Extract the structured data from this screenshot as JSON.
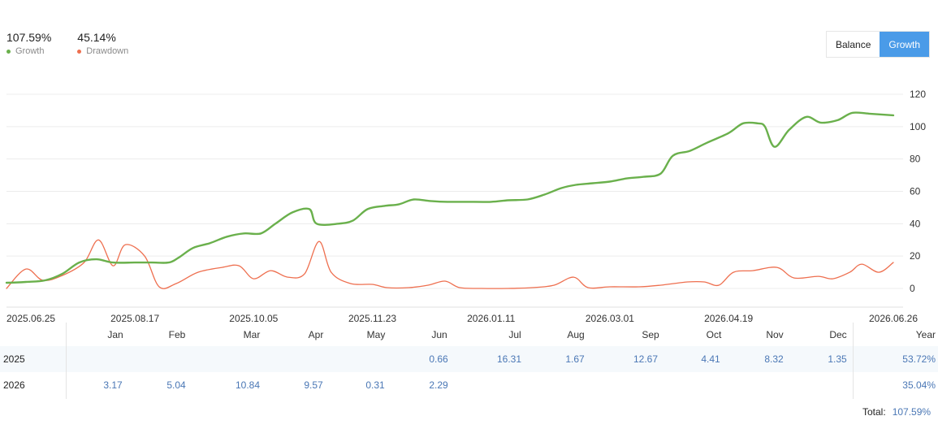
{
  "stats": {
    "growth_value": "107.59%",
    "growth_label": "Growth",
    "drawdown_value": "45.14%",
    "drawdown_label": "Drawdown"
  },
  "toggle": {
    "balance_label": "Balance",
    "growth_label": "Growth",
    "active": "Growth"
  },
  "colors": {
    "growth": "#6ab04c",
    "drawdown": "#ee6f4f",
    "accent": "#4a9be8",
    "value_text": "#4a77b5"
  },
  "chart_data": {
    "type": "line",
    "xlabel": "",
    "ylabel": "",
    "ylim": [
      0,
      120
    ],
    "y_ticks": [
      0,
      20,
      40,
      60,
      80,
      100,
      120
    ],
    "y_axis_side": "right",
    "grid": true,
    "x_tick_labels": [
      "2025.06.25",
      "2025.08.17",
      "2025.10.05",
      "2025.11.23",
      "2026.01.11",
      "2026.03.01",
      "2026.04.19",
      "2026.06.26"
    ],
    "series": [
      {
        "name": "Growth",
        "color": "#6ab04c",
        "points": [
          [
            "2025.06.25",
            3.5
          ],
          [
            "2025.07.03",
            4
          ],
          [
            "2025.07.11",
            5
          ],
          [
            "2025.07.18",
            9
          ],
          [
            "2025.07.25",
            16
          ],
          [
            "2025.08.01",
            18
          ],
          [
            "2025.08.08",
            16
          ],
          [
            "2025.08.17",
            16
          ],
          [
            "2025.08.24",
            16
          ],
          [
            "2025.08.31",
            16
          ],
          [
            "2025.09.04",
            19
          ],
          [
            "2025.09.10",
            25
          ],
          [
            "2025.09.17",
            28
          ],
          [
            "2025.09.24",
            32
          ],
          [
            "2025.10.01",
            34
          ],
          [
            "2025.10.08",
            34
          ],
          [
            "2025.10.14",
            40
          ],
          [
            "2025.10.21",
            47
          ],
          [
            "2025.10.28",
            49
          ],
          [
            "2025.10.31",
            40
          ],
          [
            "2025.11.09",
            40
          ],
          [
            "2025.11.15",
            42
          ],
          [
            "2025.11.21",
            49
          ],
          [
            "2025.11.28",
            51
          ],
          [
            "2025.12.04",
            52
          ],
          [
            "2025.12.10",
            55
          ],
          [
            "2025.12.17",
            54
          ],
          [
            "2025.12.24",
            53.5
          ],
          [
            "2026.01.01",
            53.5
          ],
          [
            "2026.01.11",
            53.5
          ],
          [
            "2026.01.18",
            54.5
          ],
          [
            "2026.01.26",
            55
          ],
          [
            "2026.02.02",
            58
          ],
          [
            "2026.02.09",
            62
          ],
          [
            "2026.02.15",
            64
          ],
          [
            "2026.02.22",
            65
          ],
          [
            "2026.03.01",
            66
          ],
          [
            "2026.03.08",
            68
          ],
          [
            "2026.03.15",
            69
          ],
          [
            "2026.03.22",
            71
          ],
          [
            "2026.03.27",
            82
          ],
          [
            "2026.04.03",
            85
          ],
          [
            "2026.04.10",
            90
          ],
          [
            "2026.04.19",
            96
          ],
          [
            "2026.04.25",
            102
          ],
          [
            "2026.05.01",
            102
          ],
          [
            "2026.05.04",
            100
          ],
          [
            "2026.05.08",
            87.5
          ],
          [
            "2026.05.14",
            98
          ],
          [
            "2026.05.21",
            106
          ],
          [
            "2026.05.27",
            102.5
          ],
          [
            "2026.06.03",
            104
          ],
          [
            "2026.06.09",
            108.5
          ],
          [
            "2026.06.16",
            108
          ],
          [
            "2026.06.26",
            107
          ]
        ]
      },
      {
        "name": "Drawdown",
        "color": "#ee6f4f",
        "points": [
          [
            "2025.06.25",
            0
          ],
          [
            "2025.07.03",
            12
          ],
          [
            "2025.07.10",
            5
          ],
          [
            "2025.07.18",
            8
          ],
          [
            "2025.07.27",
            16
          ],
          [
            "2025.08.02",
            30
          ],
          [
            "2025.08.08",
            14
          ],
          [
            "2025.08.13",
            27
          ],
          [
            "2025.08.21",
            20
          ],
          [
            "2025.08.27",
            1
          ],
          [
            "2025.09.03",
            3
          ],
          [
            "2025.09.12",
            10
          ],
          [
            "2025.09.22",
            13
          ],
          [
            "2025.09.29",
            14
          ],
          [
            "2025.10.05",
            6
          ],
          [
            "2025.10.12",
            11
          ],
          [
            "2025.10.19",
            7
          ],
          [
            "2025.10.26",
            9
          ],
          [
            "2025.11.01",
            29
          ],
          [
            "2025.11.06",
            10
          ],
          [
            "2025.11.14",
            3
          ],
          [
            "2025.11.23",
            2.5
          ],
          [
            "2025.11.29",
            0.5
          ],
          [
            "2025.12.08",
            0.5
          ],
          [
            "2025.12.16",
            2
          ],
          [
            "2025.12.23",
            4.5
          ],
          [
            "2025.12.29",
            0.5
          ],
          [
            "2026.01.07",
            0
          ],
          [
            "2026.01.18",
            0
          ],
          [
            "2026.01.28",
            0.5
          ],
          [
            "2026.02.06",
            2
          ],
          [
            "2026.02.14",
            7
          ],
          [
            "2026.02.20",
            0.5
          ],
          [
            "2026.03.01",
            1
          ],
          [
            "2026.03.13",
            1
          ],
          [
            "2026.03.22",
            2
          ],
          [
            "2026.04.02",
            4
          ],
          [
            "2026.04.09",
            4
          ],
          [
            "2026.04.15",
            2
          ],
          [
            "2026.04.21",
            10
          ],
          [
            "2026.04.29",
            11
          ],
          [
            "2026.05.09",
            13
          ],
          [
            "2026.05.16",
            6.5
          ],
          [
            "2026.05.26",
            7.5
          ],
          [
            "2026.06.01",
            6
          ],
          [
            "2026.06.08",
            10
          ],
          [
            "2026.06.13",
            15
          ],
          [
            "2026.06.20",
            10
          ],
          [
            "2026.06.26",
            16
          ]
        ]
      }
    ]
  },
  "table": {
    "months": [
      "Jan",
      "Feb",
      "Mar",
      "Apr",
      "May",
      "Jun",
      "Jul",
      "Aug",
      "Sep",
      "Oct",
      "Nov",
      "Dec"
    ],
    "year_header": "Year",
    "rows": [
      {
        "year": "2025",
        "values": [
          "",
          "",
          "",
          "",
          "",
          "0.66",
          "16.31",
          "1.67",
          "12.67",
          "4.41",
          "8.32",
          "1.35"
        ],
        "total": "53.72%"
      },
      {
        "year": "2026",
        "values": [
          "3.17",
          "5.04",
          "10.84",
          "9.57",
          "0.31",
          "2.29",
          "",
          "",
          "",
          "",
          "",
          ""
        ],
        "total": "35.04%"
      }
    ],
    "total_label": "Total:",
    "total_value": "107.59%"
  }
}
